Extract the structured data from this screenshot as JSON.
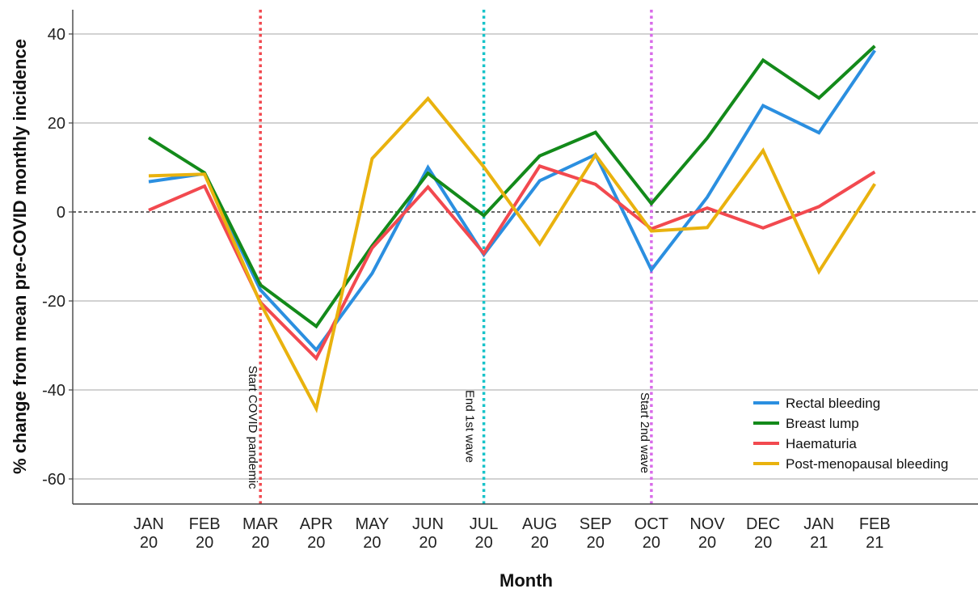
{
  "chart_data": {
    "type": "line",
    "xlabel": "Month",
    "ylabel": "% change from mean pre-COVID monthly incidence",
    "ylim": [
      -65,
      45
    ],
    "y_ticks": [
      40,
      20,
      0,
      -20,
      -40,
      -60
    ],
    "grid": "horizontal",
    "legend_position": "bottom-right",
    "categories": [
      [
        "JAN",
        "20"
      ],
      [
        "FEB",
        "20"
      ],
      [
        "MAR",
        "20"
      ],
      [
        "APR",
        "20"
      ],
      [
        "MAY",
        "20"
      ],
      [
        "JUN",
        "20"
      ],
      [
        "JUL",
        "20"
      ],
      [
        "AUG",
        "20"
      ],
      [
        "SEP",
        "20"
      ],
      [
        "OCT",
        "20"
      ],
      [
        "NOV",
        "20"
      ],
      [
        "DEC",
        "20"
      ],
      [
        "JAN",
        "21"
      ],
      [
        "FEB",
        "21"
      ]
    ],
    "series": [
      {
        "name": "Rectal bleeding",
        "color": "#2b8fe0",
        "values": [
          6.8,
          8.6,
          -17.5,
          -31,
          -13.8,
          10,
          -9.6,
          7,
          12.9,
          -13,
          3.3,
          23.9,
          17.8,
          36.3
        ]
      },
      {
        "name": "Breast lump",
        "color": "#138a1a",
        "values": [
          16.7,
          8.8,
          -16.4,
          -25.7,
          -7.6,
          8.7,
          -0.8,
          12.6,
          17.9,
          1.9,
          16.6,
          34.1,
          25.6,
          37.3
        ]
      },
      {
        "name": "Haematuria",
        "color": "#f2494f",
        "values": [
          0.4,
          5.8,
          -20.3,
          -32.9,
          -8.1,
          5.6,
          -9.3,
          10.3,
          6.2,
          -3.8,
          0.9,
          -3.6,
          1.2,
          9
        ]
      },
      {
        "name": "Post-menopausal bleeding",
        "color": "#e9b20e",
        "values": [
          8.1,
          8.5,
          -20.5,
          -44.2,
          12,
          25.5,
          10.1,
          -7.2,
          12.8,
          -4.3,
          -3.5,
          13.8,
          -13.4,
          6.3
        ]
      }
    ],
    "reference_lines": [
      {
        "label": "Start COVID pandemic",
        "at": "MAR 20",
        "color": "#f2494f"
      },
      {
        "label": "End 1st wave",
        "at": "JUL 20",
        "color": "#17c3c9"
      },
      {
        "label": "Start 2nd wave",
        "at": "OCT 20",
        "color": "#d86be9"
      }
    ],
    "zero_line": 0
  }
}
